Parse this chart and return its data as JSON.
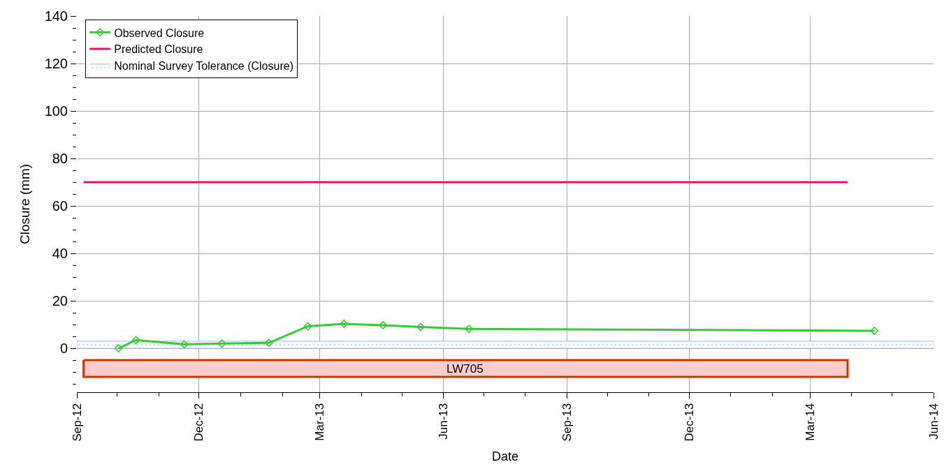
{
  "chart_data": {
    "type": "line",
    "xlabel": "Date",
    "ylabel": "Closure (mm)",
    "series": [
      {
        "name": "Observed Closure",
        "color": "#33cc33",
        "marker": "diamond",
        "x": [
          "2012-10-02",
          "2012-10-15",
          "2012-11-20",
          "2012-12-18",
          "2013-01-22",
          "2013-02-20",
          "2013-03-19",
          "2013-04-17",
          "2013-05-15",
          "2013-06-20",
          "2014-04-18"
        ],
        "values": [
          0,
          3.5,
          1.7,
          2,
          2.3,
          9.3,
          10.3,
          9.7,
          9,
          8.2,
          7.4
        ]
      },
      {
        "name": "Predicted Closure",
        "color": "#ee1166",
        "marker": "none",
        "x": [
          "2012-09-06",
          "2014-03-29"
        ],
        "values": [
          70,
          70
        ]
      }
    ],
    "bands": [
      {
        "axis": "y",
        "from": 0,
        "to": 3,
        "label": "Nominal Survey Tolerance (Closure)",
        "color": "#99bbff"
      },
      {
        "axis": "x",
        "from": "2012-09-06",
        "to": "2014-03-29",
        "label": "LW705",
        "color": "#ffcccc"
      }
    ],
    "xlim": [
      "2012-09-01",
      "2014-06-01"
    ],
    "xticks": [
      {
        "value": "2012-09-01",
        "label": "Sep-12"
      },
      {
        "value": "2012-12-01",
        "label": "Dec-12"
      },
      {
        "value": "2013-03-01",
        "label": "Mar-13"
      },
      {
        "value": "2013-06-01",
        "label": "Jun-13"
      },
      {
        "value": "2013-09-01",
        "label": "Sep-13"
      },
      {
        "value": "2013-12-01",
        "label": "Dec-13"
      },
      {
        "value": "2014-03-01",
        "label": "Mar-14"
      },
      {
        "value": "2014-06-01",
        "label": "Jun-14"
      }
    ],
    "ylim": [
      -18.5,
      140
    ],
    "yticks": [
      0,
      20,
      40,
      60,
      80,
      100,
      120,
      140
    ],
    "grid": true,
    "legend": "top left"
  }
}
